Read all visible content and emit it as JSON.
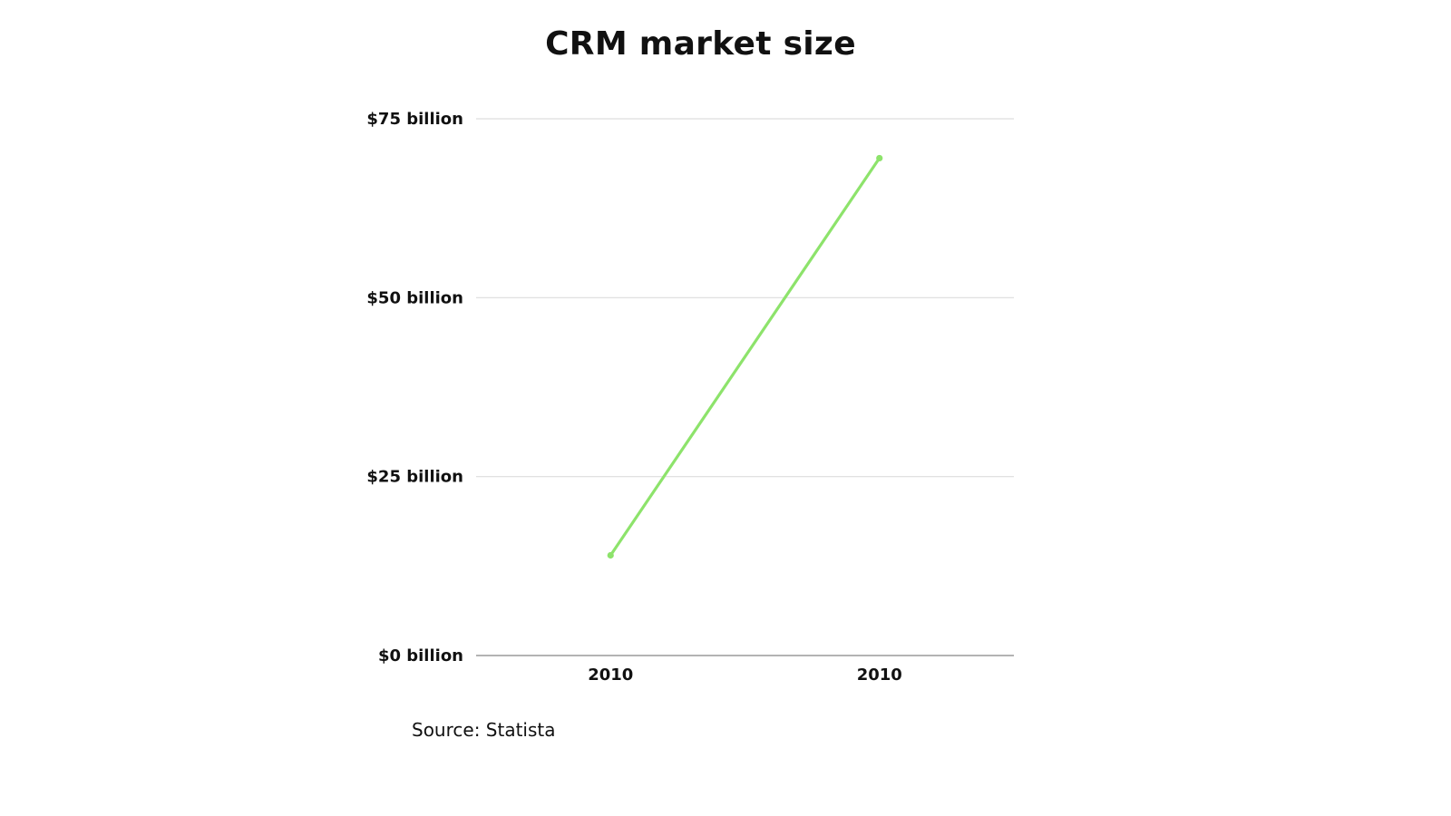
{
  "chart_data": {
    "type": "line",
    "title": "CRM market size",
    "categories": [
      "2010",
      "2010"
    ],
    "series": [
      {
        "values": [
          14,
          69.5
        ],
        "color": "#8de36b"
      }
    ],
    "yticks": [
      0,
      25,
      50,
      75
    ],
    "ytick_labels": [
      "$0 billion",
      "$25 billion",
      "$50 billion",
      "$75 billion"
    ],
    "ylim": [
      0,
      75
    ],
    "xlabel": "",
    "ylabel": "",
    "grid": true,
    "source": "Source: Statista"
  }
}
